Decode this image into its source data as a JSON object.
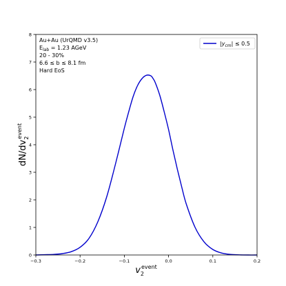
{
  "chart_data": {
    "type": "line",
    "title": "",
    "xlabel": {
      "base": "v",
      "sub": "2",
      "sup": "event"
    },
    "ylabel": {
      "base": "dN/dv",
      "sub": "2",
      "sup": "event"
    },
    "xlim": [
      -0.3,
      0.2
    ],
    "ylim": [
      0,
      8
    ],
    "xticks": [
      "−0.3",
      "−0.2",
      "−0.1",
      "0.0",
      "0.1",
      "0.2"
    ],
    "xtick_values": [
      -0.3,
      -0.2,
      -0.1,
      0.0,
      0.1,
      0.2
    ],
    "yticks": [
      "0",
      "1",
      "2",
      "3",
      "4",
      "5",
      "6",
      "7",
      "8"
    ],
    "ytick_values": [
      0,
      1,
      2,
      3,
      4,
      5,
      6,
      7,
      8
    ],
    "grid": false,
    "legend_position": "top-right",
    "annotations": [
      "Au+Au (UrQMD v3.5)",
      "E_lab = 1.23 AGeV",
      "20 - 30%",
      "6.6 ≤ b ≤ 8.1 fm",
      "Hard EoS"
    ],
    "series": [
      {
        "name": "|y_cm| ≤ 0.5",
        "color": "#0000cc",
        "x": [
          -0.3,
          -0.28,
          -0.26,
          -0.24,
          -0.22,
          -0.2,
          -0.18,
          -0.16,
          -0.14,
          -0.12,
          -0.1,
          -0.09,
          -0.08,
          -0.07,
          -0.06,
          -0.05,
          -0.04,
          -0.035,
          -0.03,
          -0.02,
          -0.01,
          0.0,
          0.01,
          0.02,
          0.03,
          0.04,
          0.06,
          0.08,
          0.1,
          0.12,
          0.14,
          0.16,
          0.18,
          0.2
        ],
        "y": [
          0.0,
          0.01,
          0.02,
          0.05,
          0.12,
          0.28,
          0.6,
          1.2,
          2.1,
          3.3,
          4.6,
          5.2,
          5.75,
          6.15,
          6.4,
          6.52,
          6.5,
          6.4,
          6.25,
          5.8,
          5.2,
          4.55,
          3.8,
          3.1,
          2.45,
          1.85,
          1.0,
          0.48,
          0.2,
          0.07,
          0.02,
          0.005,
          0.0,
          0.0
        ]
      }
    ]
  }
}
